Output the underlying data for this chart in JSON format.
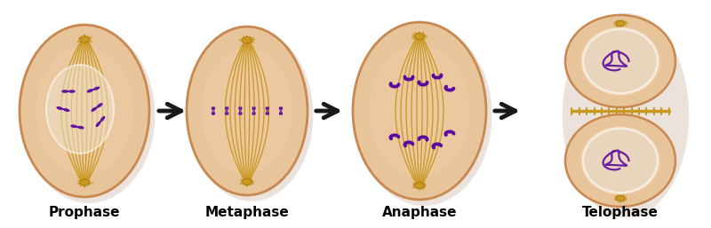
{
  "background_color": "#ffffff",
  "cell_fill_outer": "#e8c49a",
  "cell_fill_inner": "#f0d0a8",
  "cell_edge": "#c88850",
  "cell_shadow": "#b09070",
  "spindle_color": "#c89820",
  "spindle_color2": "#d4a830",
  "centrosome_color": "#c89820",
  "chromosome_color": "#5c0a9e",
  "chromosome_color2": "#7020c0",
  "arrow_color": "#1a1a1a",
  "nucleus_white": "#e8dcc8",
  "labels": [
    "Prophase",
    "Metaphase",
    "Anaphase",
    "Telophase"
  ],
  "label_fontsize": 11,
  "fig_width": 8.0,
  "fig_height": 2.57,
  "dpi": 100
}
